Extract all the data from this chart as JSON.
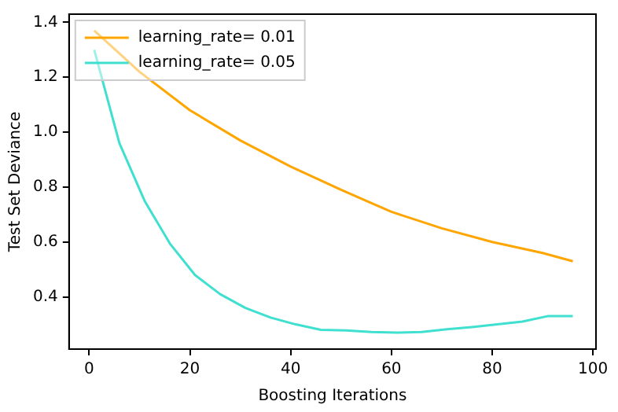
{
  "chart_data": {
    "type": "line",
    "xlabel": "Boosting Iterations",
    "ylabel": "Test Set Deviance",
    "xlim": [
      -4,
      100.6
    ],
    "xticks": [
      0,
      20,
      40,
      60,
      80,
      100
    ],
    "ylim": [
      0.21,
      1.43
    ],
    "yticks": [
      {
        "value": 0.4,
        "label": "0.4"
      },
      {
        "value": 0.6,
        "label": "0.6"
      },
      {
        "value": 0.8,
        "label": "0.8"
      },
      {
        "value": 1.0,
        "label": "1.0"
      },
      {
        "value": 1.2,
        "label": "1.2"
      },
      {
        "value": 1.4,
        "label": "1.4"
      }
    ],
    "grid": false,
    "legend": "top left",
    "marker": "none",
    "line_style": "solid",
    "series": [
      {
        "name": "learning_rate= 0.01",
        "color": "#ffa500",
        "x": [
          1,
          10,
          20,
          30,
          40,
          50,
          60,
          70,
          80,
          90,
          96
        ],
        "values": [
          1.37,
          1.22,
          1.08,
          0.97,
          0.875,
          0.79,
          0.71,
          0.65,
          0.6,
          0.56,
          0.53
        ]
      },
      {
        "name": "learning_rate= 0.05",
        "color": "#40e0d0",
        "x": [
          1,
          6,
          11,
          16,
          21,
          26,
          31,
          36,
          41,
          46,
          51,
          56,
          61,
          66,
          71,
          76,
          81,
          86,
          91,
          96
        ],
        "values": [
          1.3,
          0.96,
          0.75,
          0.595,
          0.48,
          0.41,
          0.36,
          0.325,
          0.3,
          0.28,
          0.278,
          0.272,
          0.27,
          0.272,
          0.282,
          0.29,
          0.3,
          0.31,
          0.33,
          0.33
        ]
      }
    ]
  }
}
